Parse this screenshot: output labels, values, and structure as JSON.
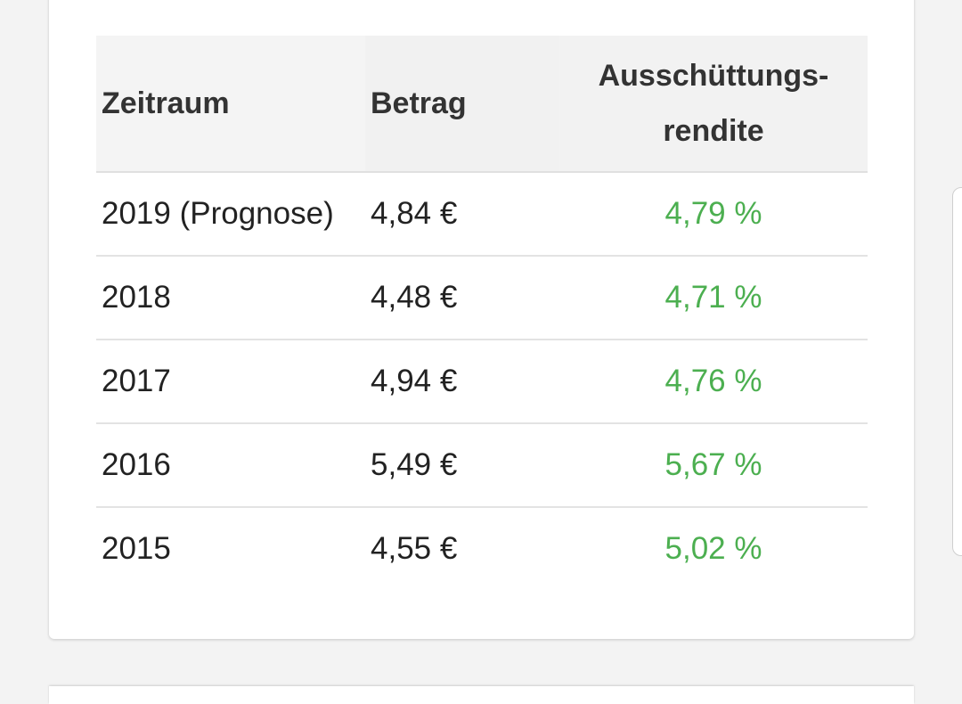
{
  "table": {
    "headers": {
      "period": "Zeitraum",
      "amount": "Betrag",
      "yield_line1": "Ausschüttungs-",
      "yield_line2": "rendite"
    },
    "rows": [
      {
        "period": "2019 (Prognose)",
        "amount": "4,84 €",
        "yield": "4,79 %"
      },
      {
        "period": "2018",
        "amount": "4,48 €",
        "yield": "4,71 %"
      },
      {
        "period": "2017",
        "amount": "4,94 €",
        "yield": "4,76 %"
      },
      {
        "period": "2016",
        "amount": "5,49 €",
        "yield": "5,67 %"
      },
      {
        "period": "2015",
        "amount": "4,55 €",
        "yield": "5,02 %"
      }
    ]
  },
  "colors": {
    "yield_text": "#4caf50",
    "header_bg": "#f4f4f4",
    "page_bg": "#f3f3f3"
  }
}
